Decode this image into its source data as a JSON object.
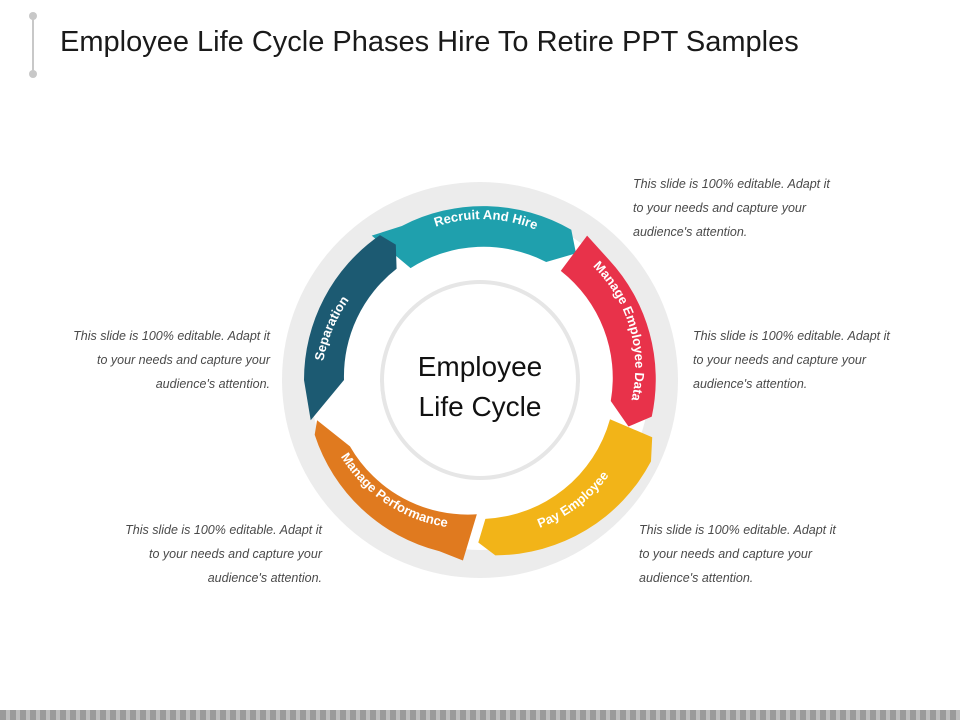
{
  "title": "Employee Life Cycle Phases Hire To Retire PPT Samples",
  "center": {
    "line1": "Employee",
    "line2": "Life Cycle"
  },
  "segments": [
    {
      "label": "Recruit And Hire",
      "color": "#1fa0ad"
    },
    {
      "label": "Manage Employee Data",
      "color": "#e8324a"
    },
    {
      "label": "Pay Employee",
      "color": "#f2b418"
    },
    {
      "label": "Manage Performance",
      "color": "#e07a1f"
    },
    {
      "label": "Separation",
      "color": "#1c5a72"
    }
  ],
  "descriptions": {
    "top_right": [
      "This slide is 100% editable. Adapt it",
      "to your needs and capture your",
      "audience's attention."
    ],
    "mid_right": [
      "This slide is 100% editable. Adapt it",
      "to your needs and capture your",
      "audience's attention."
    ],
    "mid_left": [
      "This slide is 100% editable. Adapt it",
      "to your needs and capture your",
      "audience's attention."
    ],
    "bottom_left": [
      "This slide is 100% editable. Adapt it",
      "to your needs and capture your",
      "audience's attention."
    ],
    "bottom_right": [
      "This slide is 100% editable. Adapt it",
      "to your needs and capture your",
      "audience's attention."
    ]
  }
}
